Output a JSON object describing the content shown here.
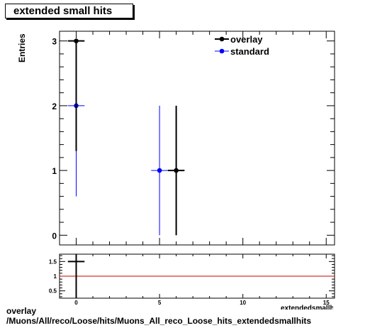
{
  "title": "extended small hits",
  "chart_data": [
    {
      "type": "scatter",
      "title": "extended small hits",
      "ylabel": "Entries",
      "xlim": [
        -1,
        15.5
      ],
      "ylim": [
        -0.15,
        3.15
      ],
      "xticks": [
        0,
        5,
        10,
        15
      ],
      "yticks": [
        0,
        1,
        2,
        3
      ],
      "legend_position": "top-right",
      "series": [
        {
          "name": "overlay",
          "color": "#000000",
          "points": [
            {
              "x": 0,
              "y": 3,
              "xerr": 0.5,
              "yerr_low": 1.7,
              "yerr_high": 0
            },
            {
              "x": 6,
              "y": 1,
              "xerr": 0.5,
              "yerr_low": 1,
              "yerr_high": 1
            }
          ]
        },
        {
          "name": "standard",
          "color": "#0000ff",
          "points": [
            {
              "x": 0,
              "y": 2,
              "xerr": 0.5,
              "yerr_low": 1.4,
              "yerr_high": 0
            },
            {
              "x": 5,
              "y": 1,
              "xerr": 0.5,
              "yerr_low": 1,
              "yerr_high": 1
            }
          ]
        }
      ]
    },
    {
      "type": "scatter",
      "xlim": [
        -1,
        15.5
      ],
      "ylim": [
        0.25,
        1.75
      ],
      "xticks": [
        0,
        5,
        10,
        15
      ],
      "yticks": [
        0.5,
        1,
        1.5
      ],
      "reference_line": {
        "y": 1,
        "color": "#cc0000"
      },
      "points": [
        {
          "x": 0,
          "y": 1.5,
          "xerr": 0.5,
          "yerr_low": 1.5,
          "yerr_high": 0.25
        }
      ]
    }
  ],
  "footer": {
    "line1": "overlay",
    "line2": "/Muons/All/reco/Loose/hits/Muons_All_reco_Loose_hits_extendedsmallhits",
    "xaxis_label": "extendedsmallhits"
  }
}
